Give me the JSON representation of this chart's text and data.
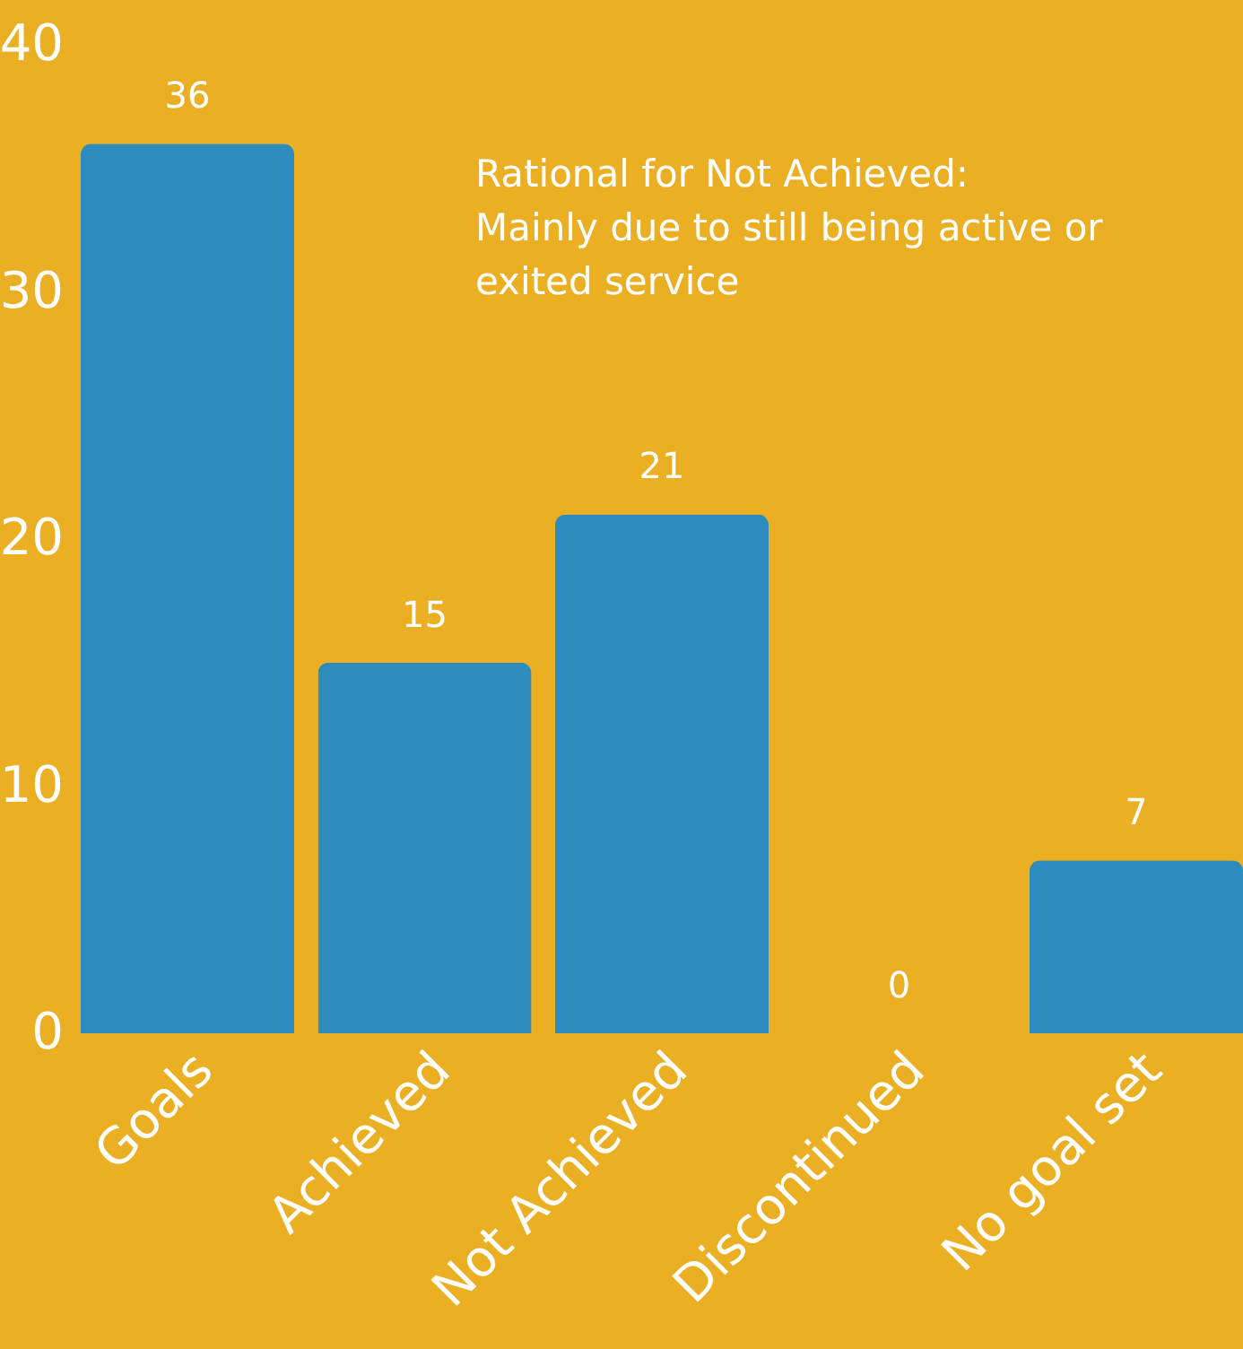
{
  "chart_data": {
    "type": "bar",
    "categories": [
      "Goals",
      "Achieved",
      "Not Achieved",
      "Discontinued",
      "No goal set"
    ],
    "values": [
      36,
      15,
      21,
      0,
      7
    ],
    "color": "#2e8bbd",
    "ylim": [
      0,
      40
    ],
    "yticks": [
      0,
      10,
      20,
      30,
      40
    ],
    "data_labels": true,
    "grid": false,
    "annotations": [
      "Rational for Not Achieved:\nMainly due to still being active or\nexited service"
    ]
  }
}
